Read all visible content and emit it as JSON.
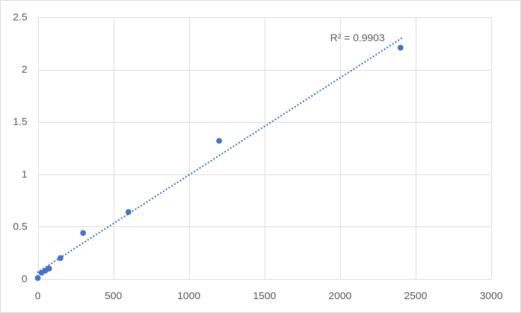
{
  "chart_data": {
    "type": "scatter",
    "title": "",
    "xlabel": "",
    "ylabel": "",
    "xlim": [
      0,
      3000
    ],
    "ylim": [
      0,
      2.5
    ],
    "xticks": {
      "values": [
        0,
        500,
        1000,
        1500,
        2000,
        2500,
        3000
      ],
      "labels": [
        "0",
        "500",
        "1000",
        "1500",
        "2000",
        "2500",
        "3000"
      ]
    },
    "yticks": {
      "values": [
        0,
        0.5,
        1,
        1.5,
        2,
        2.5
      ],
      "labels": [
        "0",
        "0.5",
        "1",
        "1.5",
        "2",
        "2.5"
      ]
    },
    "grid": true,
    "legend": "none",
    "series": [
      {
        "name": "standard-curve-points",
        "marker": "circle",
        "marker_radius_px": 4.2,
        "color": "#4472C4",
        "points": [
          {
            "x": 0,
            "y": 0.01
          },
          {
            "x": 25,
            "y": 0.06
          },
          {
            "x": 50,
            "y": 0.08
          },
          {
            "x": 75,
            "y": 0.1
          },
          {
            "x": 150,
            "y": 0.2
          },
          {
            "x": 300,
            "y": 0.44
          },
          {
            "x": 600,
            "y": 0.64
          },
          {
            "x": 1200,
            "y": 1.32
          },
          {
            "x": 2400,
            "y": 2.21
          }
        ]
      }
    ],
    "trendline": {
      "type": "linear",
      "style": "dotted",
      "color": "#4472C4",
      "slope": 0.000928,
      "intercept": 0.066,
      "x_start": 0,
      "x_end": 2415,
      "r_squared_label": "R² = 0.9903",
      "label_anchor": {
        "x": 2115,
        "y": 2.3
      }
    },
    "colors": {
      "marker": "#4472C4",
      "trendline": "#4472C4",
      "gridline": "#D9D9D9",
      "axis_line": "#D9D9D9",
      "tick_text": "#595959",
      "chart_border": "#D9D9D9",
      "background": "#FFFFFF"
    }
  }
}
